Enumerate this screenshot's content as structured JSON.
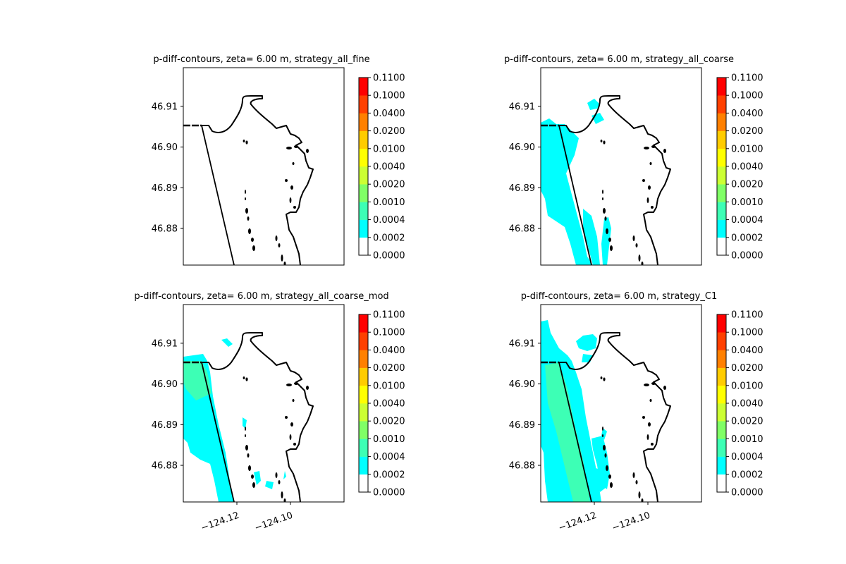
{
  "figure": {
    "panels": [
      {
        "title": "p-diff-contours, zeta= 6.00 m, strategy_all_fine"
      },
      {
        "title": "p-diff-contours, zeta= 6.00 m, strategy_all_coarse"
      },
      {
        "title": "p-diff-contours, zeta= 6.00 m, strategy_all_coarse_mod"
      },
      {
        "title": "p-diff-contours, zeta= 6.00 m, strategy_C1"
      }
    ]
  },
  "chart_data": {
    "type": "heatmap",
    "plot_kind": "filled contour map with coastline overlay",
    "y_ticks": [
      "46.91",
      "46.90",
      "46.89",
      "46.88"
    ],
    "y_tick_values": [
      46.91,
      46.9,
      46.89,
      46.88
    ],
    "x_ticks": [
      "−124.12",
      "−124.10"
    ],
    "x_tick_values": [
      -124.12,
      -124.1
    ],
    "xlim": [
      -124.14,
      -124.08
    ],
    "ylim": [
      46.871,
      46.9195
    ],
    "x_ticks_shown_on": "bottom row only",
    "grid": false,
    "colorbar": {
      "levels": [
        0.0,
        0.0002,
        0.0004,
        0.001,
        0.002,
        0.004,
        0.01,
        0.02,
        0.04,
        0.1,
        0.11
      ],
      "tick_labels": [
        "0.0000",
        "0.0002",
        "0.0004",
        "0.0010",
        "0.0020",
        "0.0040",
        "0.0100",
        "0.0200",
        "0.0400",
        "0.1000",
        "0.1100"
      ],
      "colors": [
        "#ffffff",
        "#00ffff",
        "#3dffb5",
        "#80ff66",
        "#ccff33",
        "#ffff00",
        "#ffcc00",
        "#ff8000",
        "#ff4000",
        "#ff0000"
      ]
    },
    "coastline_color": "#000000",
    "fill_levels_present": [
      {
        "panel": "strategy_all_fine",
        "max_band": "0.0000-0.0002"
      },
      {
        "panel": "strategy_all_coarse",
        "max_band": "0.0002-0.0004"
      },
      {
        "panel": "strategy_all_coarse_mod",
        "max_band": "0.0004-0.0010"
      },
      {
        "panel": "strategy_C1",
        "max_band": "0.0004-0.0010"
      }
    ]
  }
}
